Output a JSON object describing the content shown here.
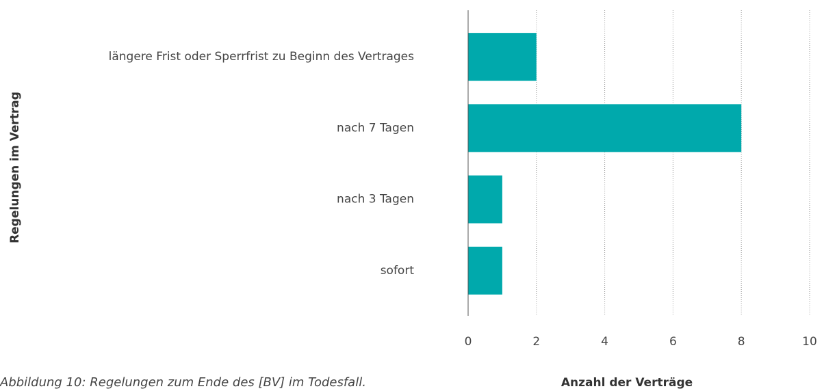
{
  "chart_data": {
    "type": "bar",
    "orientation": "horizontal",
    "categories": [
      "längere Frist oder Sperrfrist zu Beginn des Vertrages",
      "nach 7 Tagen",
      "nach 3 Tagen",
      "sofort"
    ],
    "values": [
      2,
      8,
      1,
      1
    ],
    "color": "#00a9ac",
    "xlim": [
      0,
      10
    ],
    "xticks": [
      0,
      2,
      4,
      6,
      8,
      10
    ],
    "grid": true,
    "xlabel": "Anzahl der Verträge",
    "ylabel": "Regelungen im Vertrag",
    "caption": "Abbildung 10: Regelungen zum Ende des [BV] im Todesfall."
  }
}
